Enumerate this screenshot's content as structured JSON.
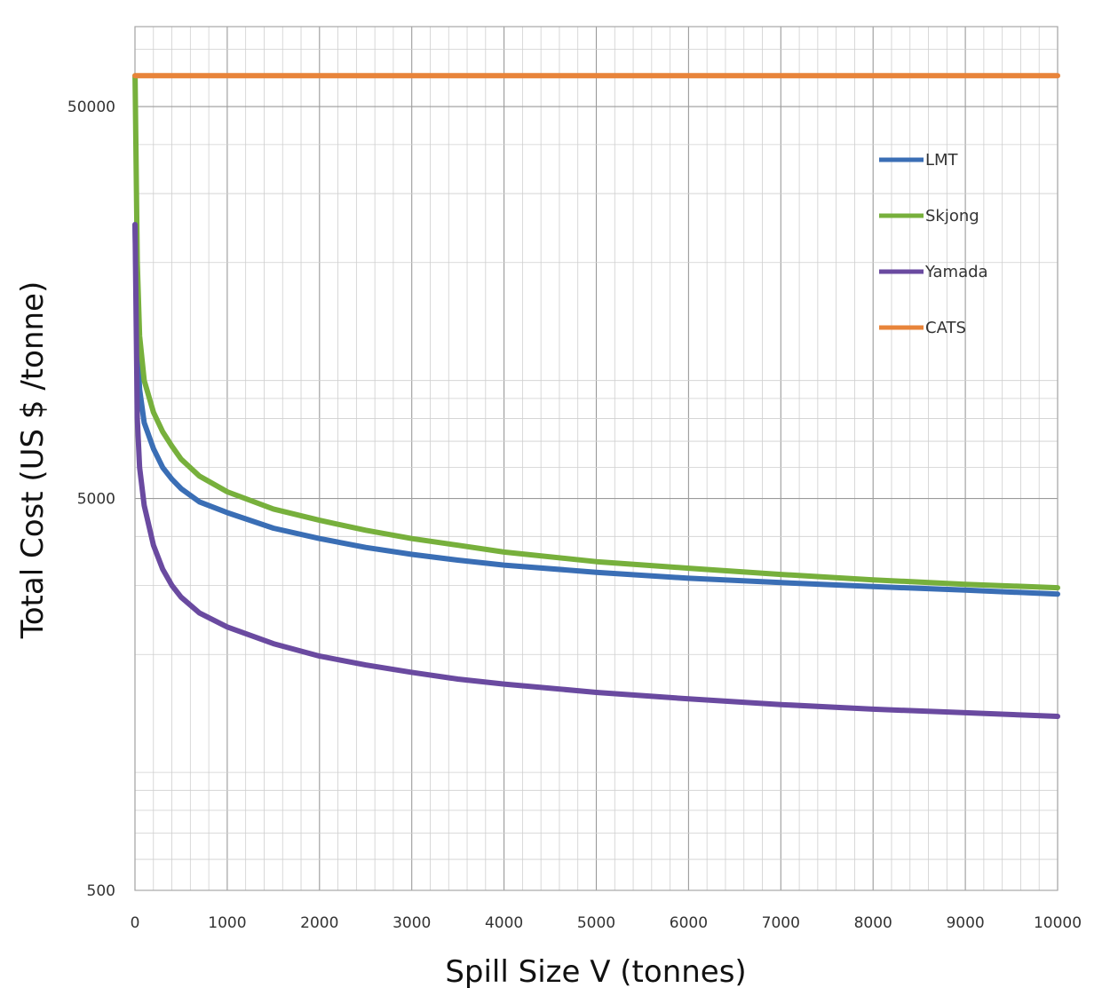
{
  "chart_data": {
    "type": "line",
    "title": "",
    "xlabel": "Spill Size V (tonnes)",
    "ylabel": "Total Cost (US $ /tonne)",
    "xlim": [
      0,
      10000
    ],
    "ylim": [
      500,
      80000
    ],
    "yscale": "log",
    "grid": true,
    "legend_position": "top-right",
    "x_ticks": [
      "0",
      "1000",
      "2000",
      "3000",
      "4000",
      "5000",
      "6000",
      "7000",
      "8000",
      "9000",
      "10000"
    ],
    "y_ticks": [
      "500",
      "5000",
      "50000"
    ],
    "x": [
      1,
      25,
      50,
      100,
      200,
      300,
      400,
      500,
      700,
      1000,
      1500,
      2000,
      2500,
      3000,
      3500,
      4000,
      5000,
      6000,
      7000,
      8000,
      9000,
      10000
    ],
    "series": [
      {
        "name": "LMT",
        "color": "#3a6eb5",
        "values": [
          25000,
          12500,
          9500,
          7800,
          6700,
          6000,
          5600,
          5300,
          4900,
          4600,
          4200,
          3950,
          3750,
          3600,
          3480,
          3380,
          3240,
          3130,
          3050,
          2980,
          2920,
          2850
        ]
      },
      {
        "name": "Skjong",
        "color": "#77b03c",
        "values": [
          60000,
          20000,
          13000,
          10000,
          8300,
          7400,
          6800,
          6300,
          5700,
          5200,
          4700,
          4400,
          4150,
          3950,
          3800,
          3650,
          3450,
          3320,
          3200,
          3100,
          3020,
          2960
        ]
      },
      {
        "name": "Yamada",
        "color": "#6a4aa0",
        "values": [
          25000,
          8000,
          6000,
          4800,
          3800,
          3300,
          3000,
          2800,
          2550,
          2350,
          2130,
          1980,
          1880,
          1800,
          1730,
          1680,
          1600,
          1540,
          1490,
          1450,
          1420,
          1390
        ]
      },
      {
        "name": "CATS",
        "color": "#e8843a",
        "values": [
          60000,
          60000,
          60000,
          60000,
          60000,
          60000,
          60000,
          60000,
          60000,
          60000,
          60000,
          60000,
          60000,
          60000,
          60000,
          60000,
          60000,
          60000,
          60000,
          60000,
          60000,
          60000
        ]
      }
    ]
  }
}
